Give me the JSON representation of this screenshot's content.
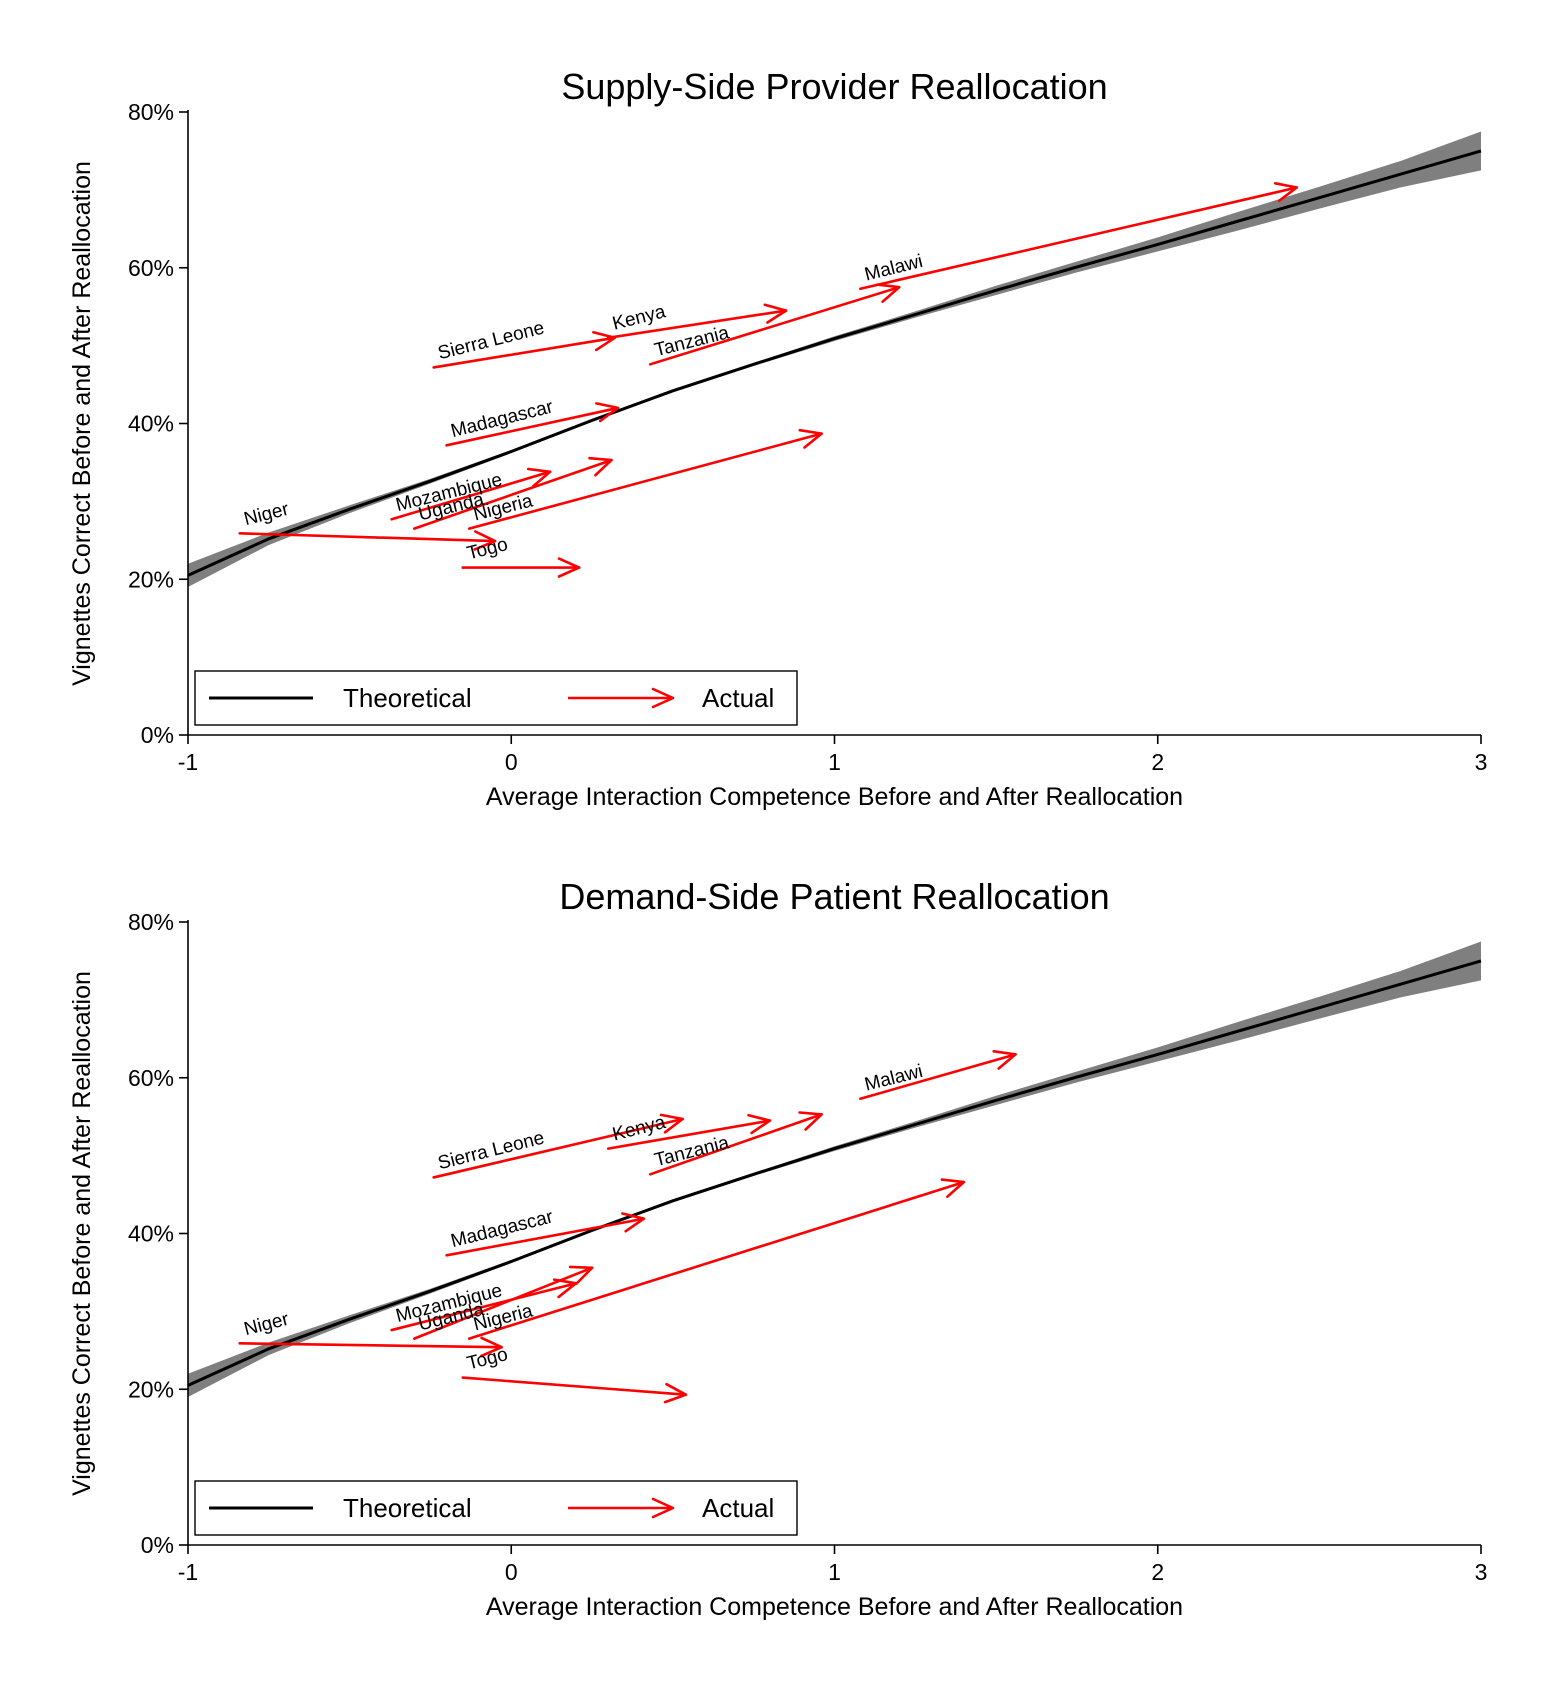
{
  "chart_data": [
    {
      "type": "line",
      "title": "Supply-Side Provider Reallocation",
      "xlabel": "Average Interaction Competence Before and After Reallocation",
      "ylabel": "Vignettes Correct Before and After Reallocation",
      "xlim": [
        -1,
        3
      ],
      "ylim": [
        0,
        80
      ],
      "xticks": [
        -1,
        0,
        1,
        2,
        3
      ],
      "xtick_labels": [
        "-1",
        "0",
        "1",
        "2",
        "3"
      ],
      "yticks": [
        0,
        20,
        40,
        60,
        80
      ],
      "ytick_labels": [
        "0%",
        "20%",
        "40%",
        "60%",
        "80%"
      ],
      "grid": false,
      "legend": {
        "position": "bottom-left",
        "entries": [
          "Theoretical",
          "Actual"
        ]
      },
      "theoretical": {
        "name": "Theoretical",
        "color": "#000000",
        "band_color": "#7f7f7f",
        "x": [
          -1.0,
          -0.75,
          -0.5,
          -0.25,
          0.0,
          0.25,
          0.5,
          0.75,
          1.0,
          1.25,
          1.5,
          1.75,
          2.0,
          2.25,
          2.5,
          2.75,
          3.0
        ],
        "y": [
          20.5,
          25.2,
          29.0,
          32.6,
          36.4,
          40.4,
          44.2,
          47.6,
          50.9,
          54.0,
          57.1,
          60.1,
          63.0,
          66.0,
          69.0,
          72.0,
          75.0
        ],
        "lo": [
          19.0,
          24.4,
          28.5,
          32.3,
          36.2,
          40.2,
          44.0,
          47.4,
          50.6,
          53.6,
          56.5,
          59.4,
          62.1,
          64.8,
          67.6,
          70.3,
          72.5
        ],
        "hi": [
          22.0,
          26.0,
          29.5,
          32.9,
          36.6,
          40.6,
          44.4,
          47.8,
          51.2,
          54.4,
          57.7,
          60.8,
          63.9,
          67.2,
          70.4,
          73.7,
          77.5
        ]
      },
      "arrows": [
        {
          "country": "Sierra Leone",
          "x0": -0.24,
          "y0": 47.2,
          "x1": 0.32,
          "y1": 51.0
        },
        {
          "country": "Kenya",
          "x0": 0.3,
          "y0": 51.0,
          "x1": 0.85,
          "y1": 54.5
        },
        {
          "country": "Tanzania",
          "x0": 0.43,
          "y0": 47.6,
          "x1": 1.2,
          "y1": 57.5
        },
        {
          "country": "Malawi",
          "x0": 1.08,
          "y0": 57.3,
          "x1": 2.43,
          "y1": 70.3
        },
        {
          "country": "Madagascar",
          "x0": -0.2,
          "y0": 37.2,
          "x1": 0.33,
          "y1": 42.0
        },
        {
          "country": "Mozambique",
          "x0": -0.37,
          "y0": 27.7,
          "x1": 0.12,
          "y1": 33.8
        },
        {
          "country": "Uganda",
          "x0": -0.3,
          "y0": 26.5,
          "x1": 0.31,
          "y1": 35.3
        },
        {
          "country": "Nigeria",
          "x0": -0.13,
          "y0": 26.5,
          "x1": 0.96,
          "y1": 38.7
        },
        {
          "country": "Niger",
          "x0": -0.84,
          "y0": 25.9,
          "x1": -0.05,
          "y1": 24.9
        },
        {
          "country": "Togo",
          "x0": -0.15,
          "y0": 21.5,
          "x1": 0.21,
          "y1": 21.5
        }
      ]
    },
    {
      "type": "line",
      "title": "Demand-Side Patient Reallocation",
      "xlabel": "Average Interaction Competence Before and After Reallocation",
      "ylabel": "Vignettes Correct Before and After Reallocation",
      "xlim": [
        -1,
        3
      ],
      "ylim": [
        0,
        80
      ],
      "xticks": [
        -1,
        0,
        1,
        2,
        3
      ],
      "xtick_labels": [
        "-1",
        "0",
        "1",
        "2",
        "3"
      ],
      "yticks": [
        0,
        20,
        40,
        60,
        80
      ],
      "ytick_labels": [
        "0%",
        "20%",
        "40%",
        "60%",
        "80%"
      ],
      "grid": false,
      "legend": {
        "position": "bottom-left",
        "entries": [
          "Theoretical",
          "Actual"
        ]
      },
      "theoretical": {
        "name": "Theoretical",
        "color": "#000000",
        "band_color": "#7f7f7f",
        "x": [
          -1.0,
          -0.75,
          -0.5,
          -0.25,
          0.0,
          0.25,
          0.5,
          0.75,
          1.0,
          1.25,
          1.5,
          1.75,
          2.0,
          2.25,
          2.5,
          2.75,
          3.0
        ],
        "y": [
          20.5,
          25.2,
          29.0,
          32.6,
          36.4,
          40.4,
          44.2,
          47.6,
          50.9,
          54.0,
          57.1,
          60.1,
          63.0,
          66.0,
          69.0,
          72.0,
          75.0
        ],
        "lo": [
          19.0,
          24.4,
          28.5,
          32.3,
          36.2,
          40.2,
          44.0,
          47.4,
          50.6,
          53.6,
          56.5,
          59.4,
          62.1,
          64.8,
          67.6,
          70.3,
          72.5
        ],
        "hi": [
          22.0,
          26.0,
          29.5,
          32.9,
          36.6,
          40.6,
          44.4,
          47.8,
          51.2,
          54.4,
          57.7,
          60.8,
          63.9,
          67.2,
          70.4,
          73.7,
          77.5
        ]
      },
      "arrows": [
        {
          "country": "Sierra Leone",
          "x0": -0.24,
          "y0": 47.2,
          "x1": 0.53,
          "y1": 54.7
        },
        {
          "country": "Kenya",
          "x0": 0.3,
          "y0": 50.9,
          "x1": 0.8,
          "y1": 54.5
        },
        {
          "country": "Tanzania",
          "x0": 0.43,
          "y0": 47.6,
          "x1": 0.96,
          "y1": 55.3
        },
        {
          "country": "Malawi",
          "x0": 1.08,
          "y0": 57.3,
          "x1": 1.56,
          "y1": 63.0
        },
        {
          "country": "Madagascar",
          "x0": -0.2,
          "y0": 37.2,
          "x1": 0.41,
          "y1": 41.9
        },
        {
          "country": "Mozambique",
          "x0": -0.37,
          "y0": 27.6,
          "x1": 0.2,
          "y1": 33.6
        },
        {
          "country": "Uganda",
          "x0": -0.3,
          "y0": 26.5,
          "x1": 0.25,
          "y1": 35.6
        },
        {
          "country": "Nigeria",
          "x0": -0.13,
          "y0": 26.5,
          "x1": 1.4,
          "y1": 46.6
        },
        {
          "country": "Niger",
          "x0": -0.84,
          "y0": 25.9,
          "x1": -0.03,
          "y1": 25.4
        },
        {
          "country": "Togo",
          "x0": -0.15,
          "y0": 21.5,
          "x1": 0.54,
          "y1": 19.3
        }
      ]
    }
  ],
  "colors": {
    "actual": "#ff0000",
    "theoretical": "#000000",
    "band": "#7f7f7f"
  }
}
